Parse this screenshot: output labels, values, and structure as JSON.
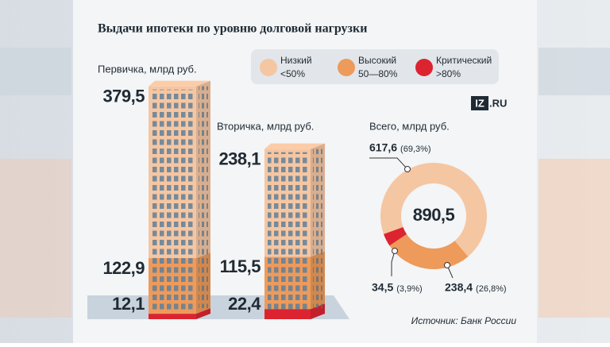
{
  "title": "Выдачи ипотеки по уровню долговой нагрузки",
  "logo": {
    "mark": "IZ",
    "text": ".RU"
  },
  "source": "Источник: Банк России",
  "chart_data": [
    {
      "type": "bar",
      "stacked": true,
      "categories": [
        "Первичка, млрд руб.",
        "Вторичка, млрд руб."
      ],
      "series": [
        {
          "name": "Низкий",
          "range": "<50%",
          "color": "#f5c6a2",
          "values": [
            379.5,
            238.1
          ],
          "value_labels": [
            "379,5",
            "238,1"
          ]
        },
        {
          "name": "Высокий",
          "range": "50—80%",
          "color": "#ee9a5a",
          "values": [
            122.9,
            115.5
          ],
          "value_labels": [
            "122,9",
            "115,5"
          ]
        },
        {
          "name": "Критический",
          "range": ">80%",
          "color": "#dc2430",
          "values": [
            12.1,
            22.4
          ],
          "value_labels": [
            "12,1",
            "22,4"
          ]
        }
      ]
    },
    {
      "type": "pie",
      "donut": true,
      "subtitle": "Всего, млрд руб.",
      "categories": [
        "Низкий",
        "Высокий",
        "Критический"
      ],
      "values": [
        617.6,
        238.4,
        34.5
      ],
      "value_labels": [
        "617,6",
        "238,4",
        "34,5"
      ],
      "percent_labels": [
        "(69,3%)",
        "(26,8%)",
        "(3,9%)"
      ],
      "colors": [
        "#f5c6a2",
        "#ee9a5a",
        "#dc2430"
      ],
      "total": 890.5,
      "total_label": "890,5"
    }
  ]
}
